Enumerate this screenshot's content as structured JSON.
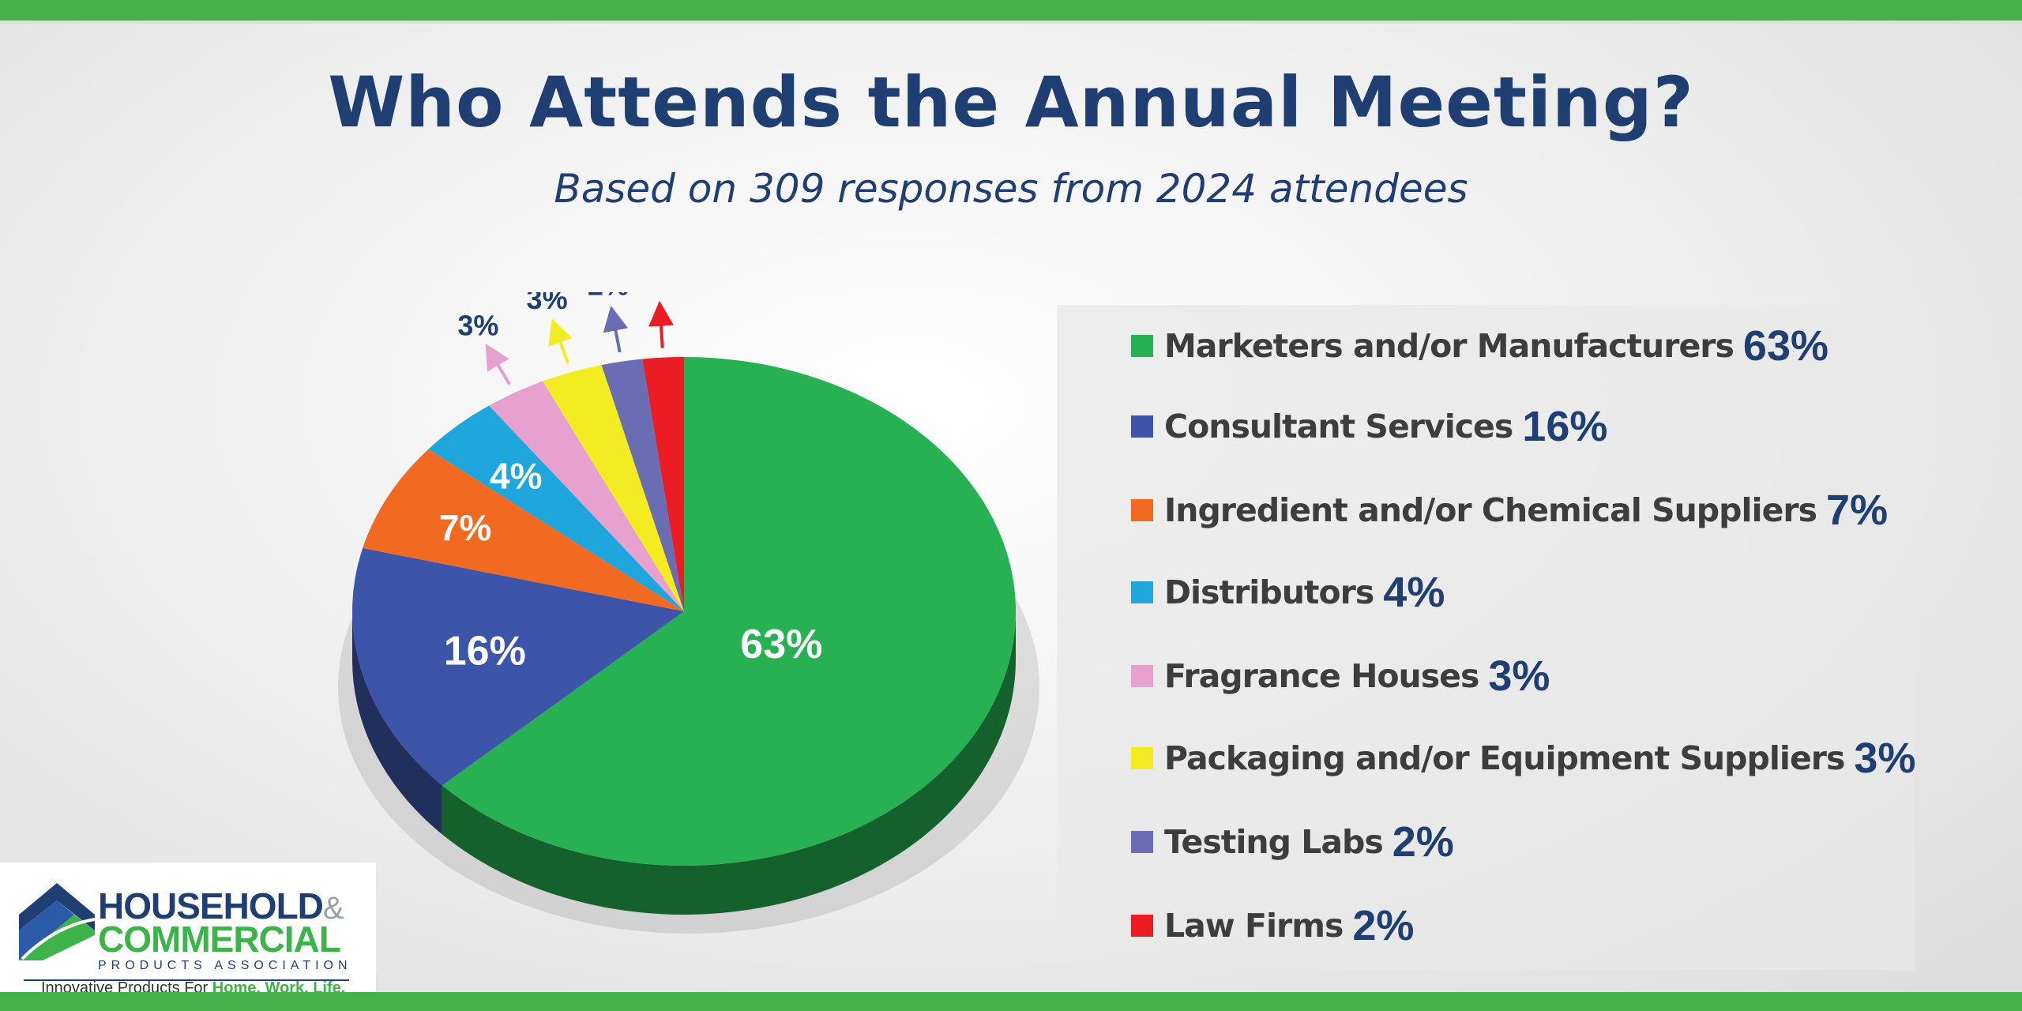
{
  "page": {
    "title": "Who Attends the Annual Meeting?",
    "subtitle": "Based on 309 responses from 2024 attendees"
  },
  "chart_data": {
    "type": "pie",
    "title": "Who Attends the Annual Meeting?",
    "subtitle": "Based on 309 responses from 2024 attendees",
    "legend_position": "right",
    "slices": [
      {
        "label": "Marketers and/or Manufacturers",
        "value": 63,
        "display": "63%",
        "color": "#27b153"
      },
      {
        "label": "Consultant Services",
        "value": 16,
        "display": "16%",
        "color": "#3c55a9"
      },
      {
        "label": "Ingredient and/or Chemical Suppliers",
        "value": 7,
        "display": "7%",
        "color": "#f26a21"
      },
      {
        "label": "Distributors",
        "value": 4,
        "display": "4%",
        "color": "#1ea6dd"
      },
      {
        "label": "Fragrance Houses",
        "value": 3,
        "display": "3%",
        "color": "#e6a1cf"
      },
      {
        "label": "Packaging and/or Equipment Suppliers",
        "value": 3,
        "display": "3%",
        "color": "#f4ec22"
      },
      {
        "label": "Testing Labs",
        "value": 2,
        "display": "2%",
        "color": "#6a6db3"
      },
      {
        "label": "Law Firms",
        "value": 2,
        "display": "2%",
        "color": "#ec1c24"
      }
    ]
  },
  "logo": {
    "line1": "HOUSEHOLD",
    "amp": "&",
    "line2": "COMMERCIAL",
    "line3": "PRODUCTS ASSOCIATION",
    "tagline_prefix": "Innovative Products For ",
    "tagline_bold": "Home. Work. Life."
  }
}
